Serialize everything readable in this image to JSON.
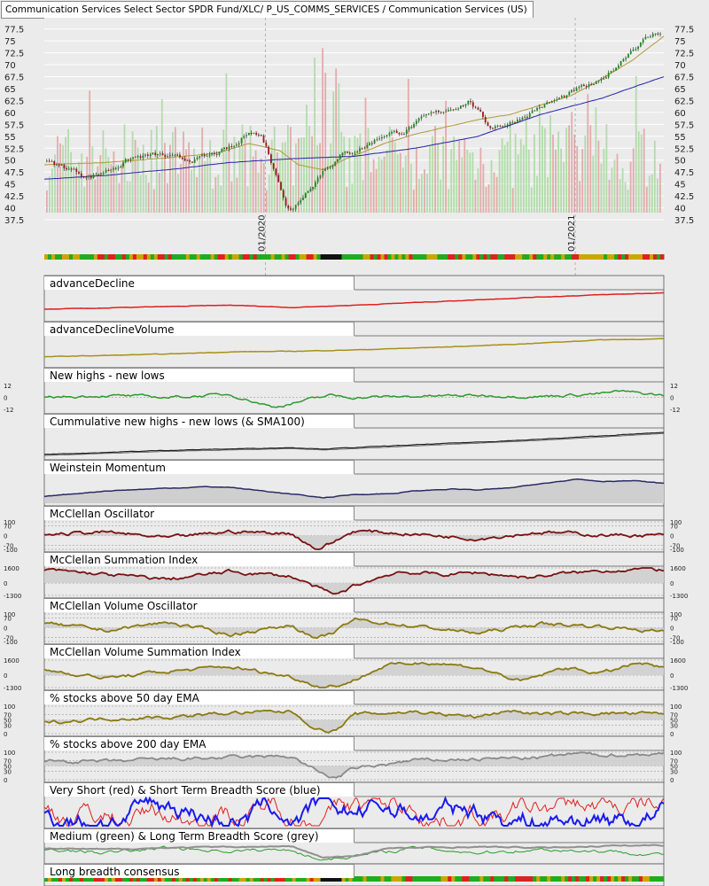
{
  "page_title": "Communication Services Select Sector SPDR Fund/XLC/ P_US_COMMS_SERVICES / Communication Services (US)",
  "chart_data": [
    {
      "type": "candlestick",
      "name": "price",
      "y_ticks": [
        "37.5",
        "40",
        "42.5",
        "45",
        "47.5",
        "50",
        "52.5",
        "55",
        "57.5",
        "60",
        "62.5",
        "65",
        "67.5",
        "70",
        "72.5",
        "75",
        "77.5"
      ],
      "ylim": [
        37.5,
        78
      ],
      "x_ticks": [
        "01/2020",
        "01/2021"
      ],
      "close_path": {
        "x": [
          0,
          0.04,
          0.07,
          0.1,
          0.14,
          0.18,
          0.22,
          0.26,
          0.29,
          0.31,
          0.33,
          0.35,
          0.36,
          0.37,
          0.38,
          0.39,
          0.4,
          0.42,
          0.45,
          0.48,
          0.52,
          0.55,
          0.58,
          0.62,
          0.66,
          0.69,
          0.72,
          0.76,
          0.8,
          0.84,
          0.87,
          0.9,
          0.93,
          0.95,
          0.97,
          1.0
        ],
        "y": [
          49.5,
          48,
          46.5,
          48,
          50.5,
          51,
          50,
          50.5,
          52,
          53,
          56.5,
          55,
          52,
          48,
          45,
          41,
          39.5,
          43,
          48,
          51,
          53,
          55.5,
          56,
          59,
          61,
          62.5,
          57,
          58,
          61,
          63,
          65,
          66,
          70,
          73,
          75,
          77
        ]
      },
      "ma_overlays": [
        {
          "color": "#b09a3a",
          "x": [
            0,
            0.1,
            0.2,
            0.28,
            0.33,
            0.38,
            0.41,
            0.45,
            0.5,
            0.55,
            0.6,
            0.65,
            0.7,
            0.75,
            0.8,
            0.85,
            0.9,
            0.95,
            1.0
          ],
          "y": [
            49,
            49.5,
            50.5,
            51.5,
            53.5,
            52,
            49,
            48,
            51,
            53.5,
            55.5,
            57,
            58.5,
            59.5,
            61.5,
            63.5,
            67,
            71,
            76
          ]
        },
        {
          "color": "#2222aa",
          "x": [
            0,
            0.1,
            0.2,
            0.3,
            0.4,
            0.5,
            0.6,
            0.7,
            0.8,
            0.9,
            1.0
          ],
          "y": [
            46,
            46.8,
            48,
            49.5,
            50.3,
            50.8,
            52.5,
            55,
            59.5,
            63,
            67.5
          ]
        }
      ]
    },
    {
      "type": "line",
      "name": "advanceDecline",
      "title": "advanceDecline",
      "color": "#e02020",
      "x": [
        0,
        0.1,
        0.2,
        0.3,
        0.4,
        0.5,
        0.6,
        0.7,
        0.8,
        0.9,
        1.0
      ],
      "y": [
        0.35,
        0.4,
        0.45,
        0.5,
        0.42,
        0.5,
        0.6,
        0.7,
        0.8,
        0.88,
        0.95
      ]
    },
    {
      "type": "line",
      "name": "advanceDeclineVolume",
      "title": "advanceDeclineVolume",
      "color": "#a8901a",
      "x": [
        0,
        0.1,
        0.2,
        0.3,
        0.4,
        0.5,
        0.6,
        0.7,
        0.8,
        0.9,
        1.0
      ],
      "y": [
        0.3,
        0.35,
        0.4,
        0.48,
        0.5,
        0.55,
        0.62,
        0.7,
        0.8,
        0.92,
        0.95
      ]
    },
    {
      "type": "line",
      "name": "new_highs_lows",
      "title": "New highs - new lows",
      "color": "#2e9a2e",
      "y_ticks": [
        "12",
        "0",
        "-12"
      ],
      "x": [
        0,
        0.1,
        0.2,
        0.3,
        0.37,
        0.46,
        0.5,
        0.6,
        0.7,
        0.8,
        0.9,
        0.93,
        1.0
      ],
      "y": [
        0,
        2,
        0,
        3,
        -10,
        2,
        0,
        1,
        2,
        1,
        4,
        6,
        2
      ]
    },
    {
      "type": "line",
      "name": "cumulative_new_highs_lows",
      "title": "Cummulative new highs - new lows (& SMA100)",
      "color": "#222222",
      "x": [
        0,
        0.2,
        0.4,
        0.45,
        0.6,
        0.8,
        1.0
      ],
      "y": [
        0.1,
        0.25,
        0.35,
        0.3,
        0.45,
        0.65,
        0.9
      ]
    },
    {
      "type": "area",
      "name": "weinstein_momentum",
      "title": "Weinstein Momentum",
      "color": "#2a2a66",
      "x": [
        0,
        0.1,
        0.2,
        0.26,
        0.3,
        0.38,
        0.45,
        0.5,
        0.56,
        0.6,
        0.66,
        0.7,
        0.75,
        0.8,
        0.86,
        0.9,
        0.95,
        1.0
      ],
      "y": [
        0.25,
        0.45,
        0.55,
        0.6,
        0.58,
        0.38,
        0.2,
        0.32,
        0.35,
        0.45,
        0.52,
        0.48,
        0.55,
        0.72,
        0.88,
        0.8,
        0.82,
        0.72
      ]
    },
    {
      "type": "area",
      "name": "mcclellan_oscillator",
      "title": "McClellan Oscillator",
      "color": "#7a1010",
      "y_ticks": [
        "100",
        "70",
        "0",
        "-70",
        "-100"
      ],
      "x": [
        0,
        0.1,
        0.2,
        0.3,
        0.4,
        0.44,
        0.47,
        0.5,
        0.6,
        0.7,
        0.8,
        0.9,
        1.0
      ],
      "y": [
        10,
        25,
        -20,
        30,
        15,
        -100,
        -40,
        35,
        10,
        -20,
        25,
        5,
        0
      ]
    },
    {
      "type": "area",
      "name": "mcclellan_summation",
      "title": "McClellan Summation Index",
      "color": "#7a1010",
      "y_ticks": [
        "1600",
        "0",
        "-1300"
      ],
      "x": [
        0,
        0.1,
        0.2,
        0.3,
        0.4,
        0.45,
        0.47,
        0.5,
        0.57,
        0.64,
        0.7,
        0.78,
        0.84,
        0.9,
        0.95,
        1.0
      ],
      "y": [
        1400,
        900,
        400,
        1200,
        700,
        -800,
        -1300,
        -300,
        1200,
        900,
        1100,
        600,
        1000,
        1300,
        1500,
        1400
      ]
    },
    {
      "type": "area",
      "name": "mcclellan_volume_oscillator",
      "title": "McClellan Volume Oscillator",
      "color": "#8a7a10",
      "y_ticks": [
        "100",
        "70",
        "0",
        "-70",
        "-100"
      ],
      "x": [
        0,
        0.1,
        0.2,
        0.3,
        0.4,
        0.44,
        0.47,
        0.5,
        0.6,
        0.7,
        0.8,
        0.9,
        1.0
      ],
      "y": [
        30,
        -20,
        40,
        -50,
        20,
        -90,
        -30,
        60,
        10,
        -40,
        30,
        10,
        -30
      ]
    },
    {
      "type": "area",
      "name": "mcclellan_volume_summation",
      "title": "McClellan Volume Summation Index",
      "color": "#8a7a10",
      "y_ticks": [
        "1600",
        "0",
        "-1300"
      ],
      "x": [
        0,
        0.1,
        0.2,
        0.3,
        0.4,
        0.45,
        0.49,
        0.55,
        0.62,
        0.7,
        0.77,
        0.84,
        0.9,
        0.96,
        1.0
      ],
      "y": [
        600,
        -300,
        400,
        900,
        -200,
        -1300,
        -800,
        1000,
        1400,
        800,
        -700,
        800,
        200,
        1300,
        700
      ]
    },
    {
      "type": "area",
      "name": "pct_above_50ema",
      "title": "% stocks above 50 day EMA",
      "color": "#8a7a10",
      "y_ticks": [
        "100",
        "70",
        "50",
        "30",
        "0"
      ],
      "x": [
        0,
        0.1,
        0.2,
        0.3,
        0.4,
        0.44,
        0.47,
        0.5,
        0.6,
        0.7,
        0.75,
        0.8,
        0.9,
        1.0
      ],
      "y": [
        40,
        55,
        60,
        75,
        80,
        15,
        10,
        70,
        80,
        60,
        85,
        70,
        75,
        70
      ]
    },
    {
      "type": "area",
      "name": "pct_above_200ema",
      "title": "% stocks above 200 day EMA",
      "color": "#8a8a8a",
      "y_ticks": [
        "100",
        "70",
        "50",
        "30",
        "0"
      ],
      "x": [
        0,
        0.1,
        0.2,
        0.3,
        0.4,
        0.44,
        0.47,
        0.5,
        0.6,
        0.7,
        0.8,
        0.86,
        0.9,
        1.0
      ],
      "y": [
        70,
        65,
        75,
        80,
        85,
        30,
        5,
        40,
        70,
        75,
        80,
        95,
        90,
        95
      ]
    },
    {
      "type": "line",
      "name": "short_term_breadth",
      "title": "Very Short (red) & Short Term Breadth Score (blue)",
      "series": [
        {
          "name": "Very Short",
          "color": "#e02020"
        },
        {
          "name": "Short",
          "color": "#1a1aee"
        }
      ]
    },
    {
      "type": "line",
      "name": "long_term_breadth",
      "title": "Medium (green) & Long Term Breadth Score (grey)",
      "series": [
        {
          "name": "Medium",
          "color": "#2a9a2a",
          "x": [
            0,
            0.1,
            0.2,
            0.3,
            0.4,
            0.44,
            0.5,
            0.6,
            0.7,
            0.8,
            0.9,
            1.0
          ],
          "y": [
            0.7,
            0.5,
            0.8,
            0.6,
            0.7,
            0.1,
            0.3,
            0.8,
            0.5,
            0.7,
            0.6,
            0.4
          ]
        },
        {
          "name": "Long",
          "color": "#909090",
          "x": [
            0,
            0.1,
            0.2,
            0.3,
            0.4,
            0.45,
            0.5,
            0.55,
            0.6,
            0.7,
            0.8,
            0.9,
            1.0
          ],
          "y": [
            0.75,
            0.7,
            0.8,
            0.85,
            0.88,
            0.2,
            0.3,
            0.75,
            0.8,
            0.85,
            0.8,
            0.9,
            0.95
          ]
        }
      ]
    },
    {
      "type": "heatmap",
      "name": "long_breadth_consensus",
      "title": "Long breadth consensus"
    }
  ],
  "colors": {
    "bull": "#1f8a1f",
    "bear": "#a01818",
    "vol_up": "#a8d8a0",
    "vol_down": "#e0a0a0",
    "strip_red": "#d22",
    "strip_green": "#2a2",
    "strip_yellow": "#c9a800"
  }
}
